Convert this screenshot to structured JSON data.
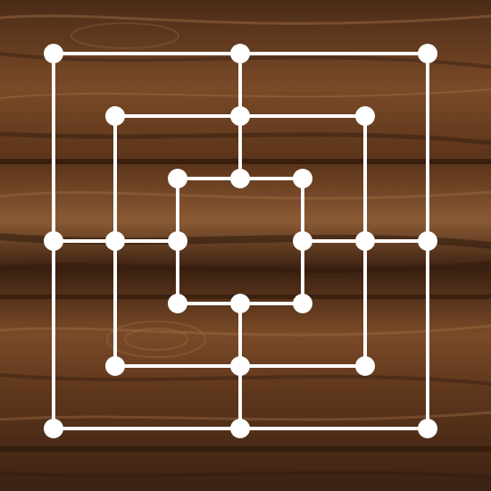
{
  "game": {
    "type": "nine-mens-morris",
    "surface": "wood-board",
    "colors": {
      "board_lines": "#ffffff",
      "points": "#ffffff",
      "wood_dark": "#2e1a0e",
      "wood_mid": "#6b3f22",
      "wood_light": "#9a6a43"
    },
    "rings": 3,
    "points_per_ring": 8,
    "total_points": 24,
    "placed_pieces": []
  }
}
